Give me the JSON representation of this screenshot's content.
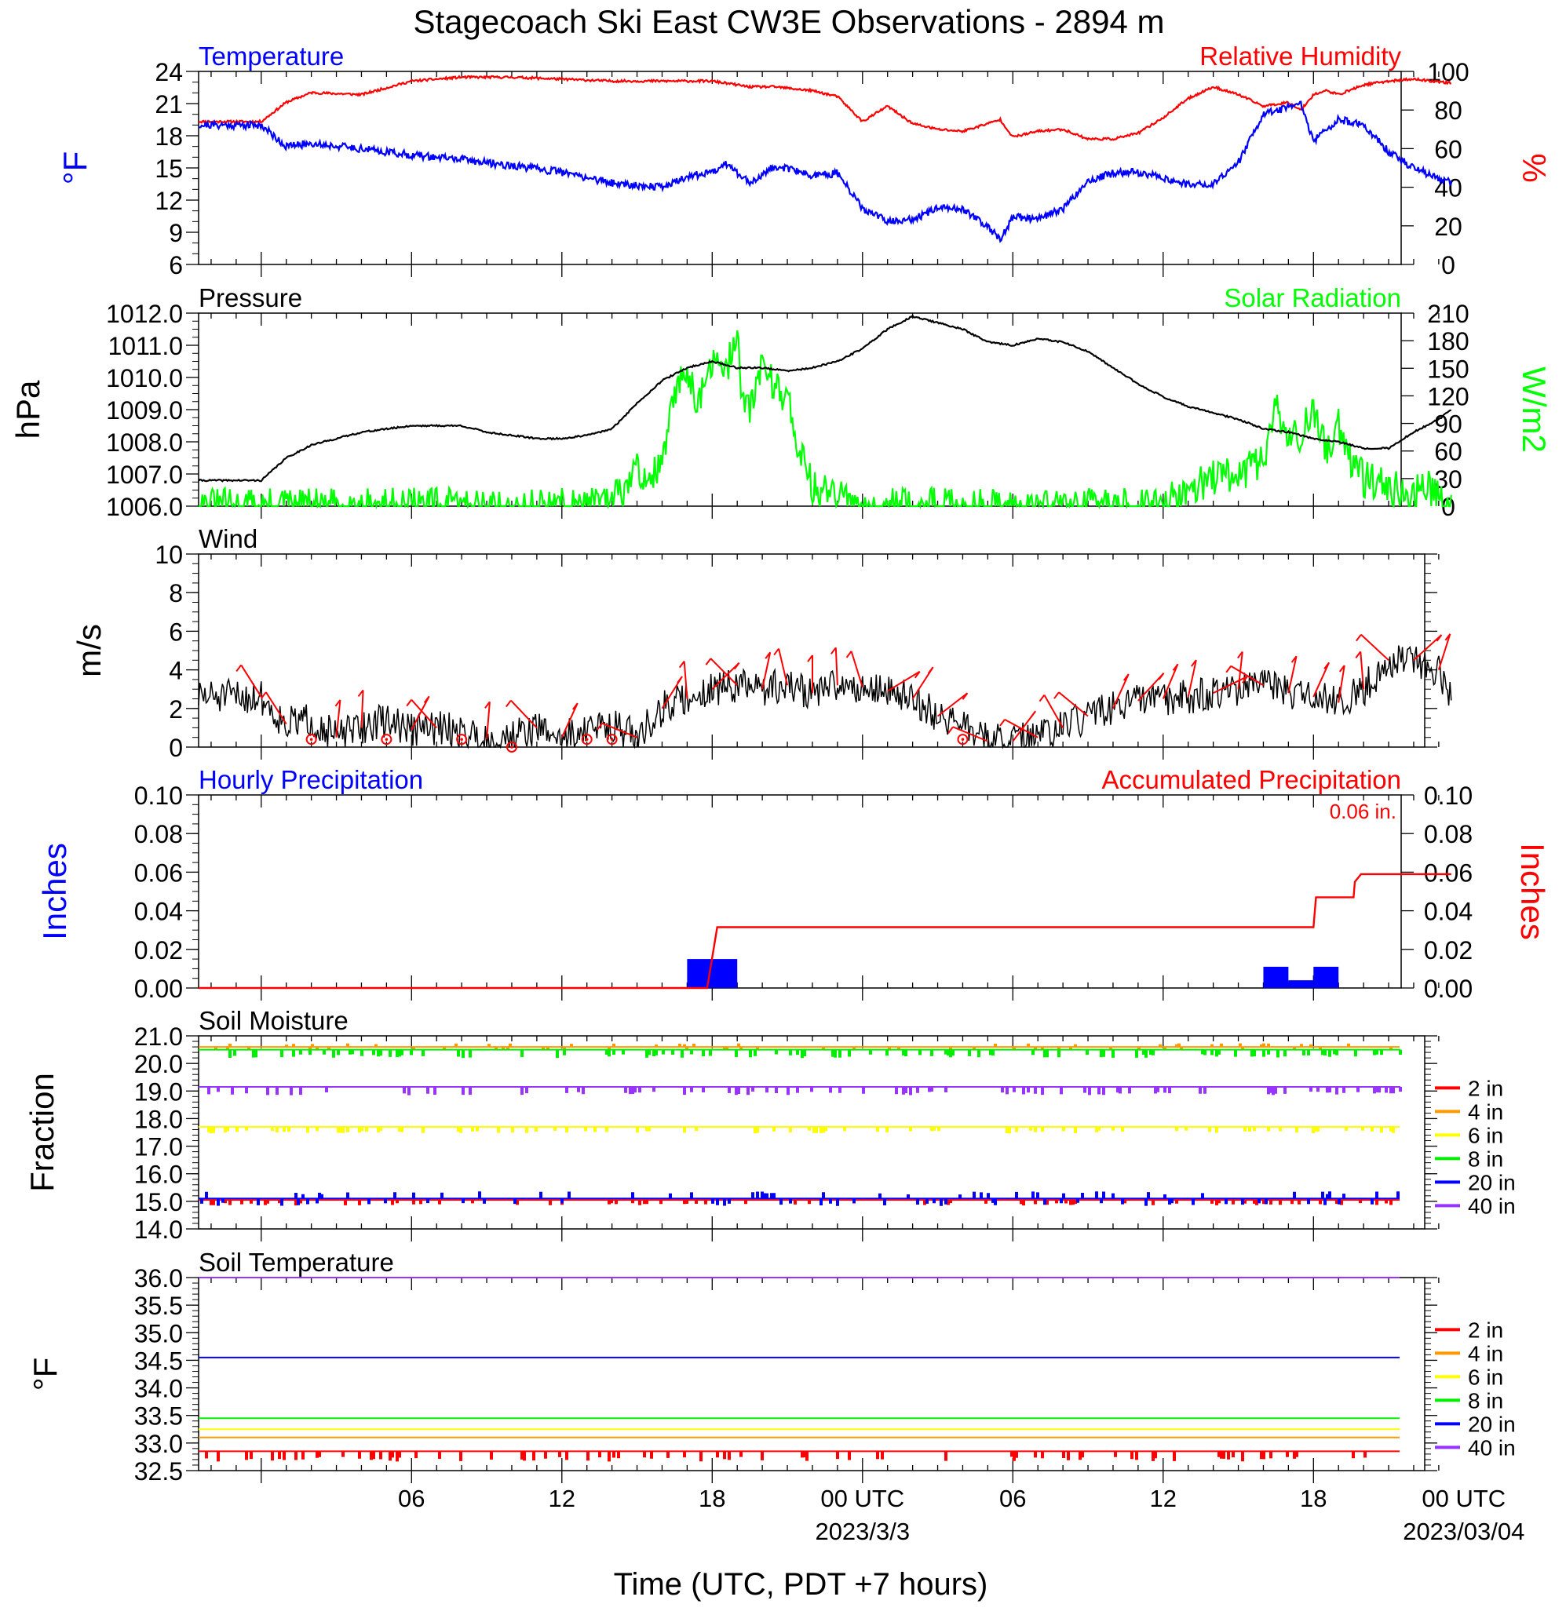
{
  "title": "Stagecoach Ski East CW3E Observations - 2894 m",
  "x_axis": {
    "title": "Time (UTC, PDT +7 hours)",
    "tick_labels": [
      "06",
      "12",
      "18",
      "00 UTC",
      "06",
      "12",
      "18",
      "00 UTC"
    ],
    "date_labels": [
      "2023/3/3",
      "2023/03/04"
    ]
  },
  "colors": {
    "temperature": "#0000ff",
    "humidity": "#ff0000",
    "pressure": "#000000",
    "solar": "#00ff00",
    "wind": "#000000",
    "barb": "#ff0000",
    "hourly_precip": "#0000ff",
    "accum_precip": "#ff0000",
    "depth_2in": "#ff0000",
    "depth_4in": "#ff9900",
    "depth_6in": "#ffff00",
    "depth_8in": "#00ee00",
    "depth_20in": "#0000ff",
    "depth_40in": "#9933ff"
  },
  "chart_data": [
    {
      "type": "line",
      "panel": "temperature-humidity",
      "left_title": "Temperature",
      "right_title": "Relative Humidity",
      "ylabel_left": "°F",
      "ylabel_right": "%",
      "ylim_left": [
        6,
        24
      ],
      "ylim_right": [
        0,
        100
      ],
      "yticks_left": [
        "24",
        "21",
        "18",
        "15",
        "12",
        "9",
        "6"
      ],
      "yticks_right": [
        "100",
        "80",
        "60",
        "40",
        "20",
        "0"
      ],
      "x_hours": [
        0,
        1,
        2,
        4,
        6,
        8,
        10,
        12,
        14,
        16,
        17,
        18,
        18.5,
        19.5,
        20.5,
        22,
        23,
        24,
        25,
        26,
        27,
        28,
        29,
        29.5,
        30,
        31,
        32,
        33,
        34,
        35,
        36,
        37,
        38,
        39,
        40,
        41,
        41.5,
        42,
        42.5,
        43,
        44,
        45,
        46,
        47.5
      ],
      "series": [
        {
          "name": "Temperature",
          "axis": "left",
          "values": [
            19,
            17,
            17.3,
            16.8,
            16.2,
            15.8,
            15.2,
            14.6,
            13.6,
            13.2,
            14.2,
            14.6,
            15.5,
            13.6,
            15.2,
            14.3,
            14.5,
            11.2,
            10,
            10.2,
            11.2,
            11.2,
            9.6,
            8.2,
            10.5,
            10.2,
            11.2,
            13.8,
            14.5,
            14.6,
            14.1,
            13.4,
            13.6,
            15.5,
            20,
            20.6,
            21,
            17.5,
            18.5,
            19.5,
            19,
            16.5,
            15,
            13.6
          ]
        },
        {
          "name": "Relative Humidity",
          "axis": "right",
          "values": [
            74,
            84,
            89,
            88,
            95,
            97,
            97,
            96,
            95,
            95,
            95,
            95,
            94,
            92,
            92,
            90,
            87,
            74,
            82,
            73,
            70,
            69,
            73,
            75,
            66,
            69,
            70,
            65,
            65,
            68,
            76,
            86,
            92,
            88,
            82,
            84,
            80,
            88,
            90,
            88,
            93,
            95,
            96,
            94
          ]
        }
      ]
    },
    {
      "type": "line",
      "panel": "pressure-solar",
      "left_title": "Pressure",
      "right_title": "Solar Radiation",
      "ylabel_left": "hPa",
      "ylabel_right": "W/m2",
      "ylim_left": [
        1006,
        1012
      ],
      "ylim_right": [
        0,
        210
      ],
      "yticks_left": [
        "1012.0",
        "1011.0",
        "1010.0",
        "1009.0",
        "1008.0",
        "1007.0",
        "1006.0"
      ],
      "yticks_right": [
        "210",
        "180",
        "150",
        "120",
        "90",
        "60",
        "30",
        "0"
      ],
      "pressure": {
        "name": "Pressure",
        "x_hours": [
          0,
          1,
          2,
          3,
          4,
          5,
          6,
          8,
          9,
          10,
          11,
          12,
          13,
          14,
          15,
          16,
          17,
          18,
          19,
          20,
          21,
          22,
          23,
          24,
          25,
          26,
          27,
          28,
          29,
          30,
          31,
          32,
          33,
          34,
          35,
          36,
          37,
          38,
          39,
          40,
          41,
          42,
          43,
          44,
          45,
          46,
          47,
          47.5
        ],
        "values": [
          1006.8,
          1007.5,
          1007.9,
          1008.1,
          1008.3,
          1008.4,
          1008.5,
          1008.5,
          1008.3,
          1008.2,
          1008.1,
          1008.1,
          1008.2,
          1008.4,
          1009.2,
          1009.9,
          1010.3,
          1010.5,
          1010.3,
          1010.3,
          1010.2,
          1010.3,
          1010.5,
          1010.9,
          1011.5,
          1011.9,
          1011.7,
          1011.5,
          1011.1,
          1011.0,
          1011.2,
          1011.1,
          1010.8,
          1010.3,
          1009.8,
          1009.4,
          1009.1,
          1008.9,
          1008.7,
          1008.4,
          1008.3,
          1008.1,
          1008.0,
          1007.8,
          1007.8,
          1008.3,
          1008.7,
          1009.0
        ]
      },
      "solar": {
        "name": "Solar Radiation",
        "x_hours": [
          0,
          12,
          13,
          14,
          14.5,
          15,
          15.5,
          16,
          16.5,
          17,
          17.5,
          18,
          18.5,
          19,
          19.2,
          19.5,
          20,
          20.5,
          21,
          21.5,
          22,
          22.5,
          23,
          23.5,
          24,
          32,
          36,
          37,
          38,
          39,
          40,
          40.5,
          41,
          41.5,
          42,
          42.5,
          43,
          43.5,
          44,
          45,
          46,
          46.5,
          47,
          47.3,
          47.5
        ],
        "values": [
          0,
          0,
          0,
          5,
          20,
          40,
          30,
          45,
          120,
          150,
          110,
          160,
          140,
          190,
          120,
          100,
          160,
          130,
          120,
          60,
          20,
          15,
          10,
          3,
          0,
          0,
          0,
          20,
          30,
          35,
          50,
          110,
          70,
          80,
          100,
          60,
          90,
          50,
          30,
          20,
          15,
          25,
          10,
          5,
          0
        ]
      }
    },
    {
      "type": "line",
      "panel": "wind",
      "left_title": "Wind",
      "ylabel": "m/s",
      "ylim": [
        0,
        10
      ],
      "yticks": [
        "10",
        "8",
        "6",
        "4",
        "2",
        "0"
      ],
      "wind_speed": {
        "name": "Wind",
        "x_hours": [
          0,
          0.5,
          1,
          2,
          3,
          4,
          5,
          6,
          7,
          8,
          9,
          10,
          11,
          12,
          13,
          14,
          15,
          16,
          17,
          18,
          19,
          20,
          21,
          22,
          23,
          24,
          25,
          26,
          27,
          28,
          29,
          30,
          31,
          32,
          33,
          34,
          35,
          36,
          37,
          38,
          39,
          40,
          41,
          42,
          43,
          44,
          45,
          46,
          47,
          47.5
        ],
        "values": [
          2.6,
          1.8,
          1.2,
          1.4,
          0.5,
          1.0,
          1.4,
          0.9,
          1.0,
          0.8,
          0.4,
          0.5,
          1.0,
          0.5,
          0.9,
          1.2,
          0.5,
          2.0,
          2.5,
          3.0,
          3.2,
          3.0,
          3.2,
          2.8,
          3.2,
          3.1,
          2.9,
          2.5,
          1.6,
          1.2,
          0.3,
          0.3,
          0.5,
          1.0,
          1.6,
          2.0,
          2.4,
          2.5,
          2.6,
          2.8,
          3.0,
          3.2,
          2.8,
          2.6,
          2.3,
          3.0,
          4.5,
          4.5,
          4.0,
          2.4
        ]
      },
      "calm_hours": [
        2,
        5,
        8,
        10,
        13,
        14,
        28
      ]
    },
    {
      "type": "bar",
      "panel": "precipitation",
      "left_title": "Hourly Precipitation",
      "right_title": "Accumulated Precipitation",
      "annotation": "0.06 in.",
      "ylabel_left": "Inches",
      "ylabel_right": "Inches",
      "ylim": [
        0,
        0.1
      ],
      "yticks": [
        "0.10",
        "0.08",
        "0.06",
        "0.04",
        "0.02",
        "0.00"
      ],
      "hourly": {
        "name": "Hourly Precipitation",
        "bars": [
          {
            "start_hour": 17,
            "end_hour": 19,
            "value": 0.015
          },
          {
            "start_hour": 40,
            "end_hour": 41,
            "value": 0.011
          },
          {
            "start_hour": 41,
            "end_hour": 42,
            "value": 0.004
          },
          {
            "start_hour": 42,
            "end_hour": 43,
            "value": 0.011
          }
        ]
      },
      "accumulated": {
        "name": "Accumulated Precipitation",
        "x_hours": [
          0,
          17.8,
          18.2,
          42.0,
          42.1,
          42.15,
          43.6,
          43.65,
          43.9,
          47.5
        ],
        "values": [
          0,
          0,
          0.0315,
          0.0315,
          0.047,
          0.047,
          0.047,
          0.055,
          0.059,
          0.059
        ]
      }
    },
    {
      "type": "line",
      "panel": "soil-moisture",
      "left_title": "Soil Moisture",
      "ylabel": "Fraction",
      "ylim": [
        14,
        21
      ],
      "yticks": [
        "21.0",
        "20.0",
        "19.0",
        "18.0",
        "17.0",
        "16.0",
        "15.0",
        "14.0"
      ],
      "series": [
        {
          "name": "2 in",
          "value": 15.05
        },
        {
          "name": "4 in",
          "value": 20.6
        },
        {
          "name": "6 in",
          "value": 17.7
        },
        {
          "name": "8 in",
          "value": 20.5
        },
        {
          "name": "20 in",
          "value": 15.1
        },
        {
          "name": "40 in",
          "value": 19.15
        }
      ]
    },
    {
      "type": "line",
      "panel": "soil-temperature",
      "left_title": "Soil Temperature",
      "ylabel": "°F",
      "ylim": [
        32.5,
        36
      ],
      "yticks": [
        "36.0",
        "35.5",
        "35.0",
        "34.5",
        "34.0",
        "33.5",
        "33.0",
        "32.5"
      ],
      "series": [
        {
          "name": "2 in",
          "value": 32.85
        },
        {
          "name": "4 in",
          "value": 33.1
        },
        {
          "name": "6 in",
          "value": 33.25
        },
        {
          "name": "8 in",
          "value": 33.45
        },
        {
          "name": "20 in",
          "value": 34.55
        },
        {
          "name": "40 in",
          "value": 36.0
        }
      ]
    }
  ]
}
